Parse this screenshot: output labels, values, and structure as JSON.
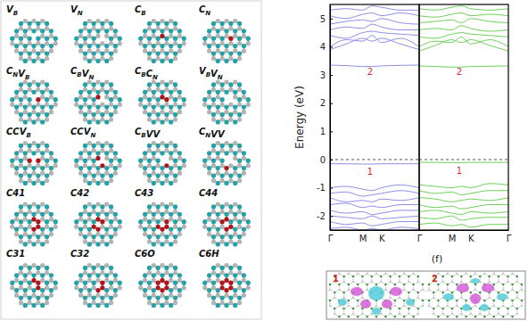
{
  "structures": [
    [
      [
        "V",
        "B"
      ]
    ],
    [
      [
        "V",
        "N"
      ]
    ],
    [
      [
        "C",
        "B"
      ]
    ],
    [
      [
        "C",
        "N"
      ]
    ],
    [
      [
        "C",
        "N"
      ],
      [
        "V",
        "B"
      ]
    ],
    [
      [
        "C",
        "B"
      ],
      [
        "V",
        "N"
      ]
    ],
    [
      [
        "C",
        "B"
      ],
      [
        "C",
        "N"
      ]
    ],
    [
      [
        "V",
        "B"
      ],
      [
        "V",
        "N"
      ]
    ],
    [
      [
        "CCV",
        "B"
      ]
    ],
    [
      [
        "CCV",
        "N"
      ]
    ],
    [
      [
        "C",
        "B"
      ],
      [
        "VV"
      ]
    ],
    [
      [
        "C",
        "N"
      ],
      [
        "VV"
      ]
    ],
    [
      [
        "C41"
      ]
    ],
    [
      [
        "C42"
      ]
    ],
    [
      [
        "C43"
      ]
    ],
    [
      [
        "C44"
      ]
    ],
    [
      [
        "C31"
      ]
    ],
    [
      [
        "C32"
      ]
    ],
    [
      [
        "C6O"
      ]
    ],
    [
      [
        "C6H"
      ]
    ]
  ],
  "chart_data": [
    {
      "type": "line",
      "ylabel": "Energy (eV)",
      "color": "#8f8fe6",
      "x": [
        0,
        0.183,
        0.366,
        0.472,
        0.577,
        0.789,
        1
      ],
      "xlim": [
        0,
        1
      ],
      "xticks": [
        {
          "value": 0,
          "label": "Γ"
        },
        {
          "value": 0.366,
          "label": "M"
        },
        {
          "value": 0.577,
          "label": "K"
        },
        {
          "value": 1,
          "label": "Γ"
        }
      ],
      "ylim": [
        -2.5,
        5.5
      ],
      "yticks": [
        -2,
        -1,
        0,
        1,
        2,
        3,
        4,
        5
      ],
      "reference_line": {
        "y": 0,
        "line_style": "dashed"
      },
      "annotations": [
        {
          "text": "1",
          "x": 0.45,
          "y": -0.55,
          "color": "#d62728"
        },
        {
          "text": "2",
          "x": 0.45,
          "y": 3.0,
          "color": "#d62728"
        }
      ],
      "series": [
        {
          "values": [
            -1.0,
            -0.95,
            -1.05,
            -1.1,
            -1.0,
            -0.9,
            -1.0
          ]
        },
        {
          "values": [
            -1.2,
            -1.15,
            -1.3,
            -1.25,
            -1.2,
            -1.1,
            -1.2
          ]
        },
        {
          "values": [
            -1.35,
            -1.5,
            -1.45,
            -1.5,
            -1.4,
            -1.45,
            -1.35
          ]
        },
        {
          "values": [
            -1.6,
            -1.55,
            -1.7,
            -1.65,
            -1.7,
            -1.6,
            -1.6
          ]
        },
        {
          "values": [
            -1.8,
            -1.9,
            -1.85,
            -1.95,
            -1.9,
            -1.8,
            -1.8
          ]
        },
        {
          "values": [
            -2.0,
            -2.05,
            -2.1,
            -2.0,
            -2.1,
            -2.05,
            -2.0
          ]
        },
        {
          "values": [
            -2.2,
            -2.3,
            -2.25,
            -2.35,
            -2.3,
            -2.2,
            -2.2
          ]
        },
        {
          "values": [
            -2.45,
            -2.4,
            -2.5,
            -2.45,
            -2.5,
            -2.4,
            -2.45
          ]
        },
        {
          "values": [
            -0.15,
            -0.15,
            -0.16,
            -0.16,
            -0.15,
            -0.15,
            -0.15
          ]
        },
        {
          "values": [
            3.35,
            3.33,
            3.3,
            3.3,
            3.32,
            3.34,
            3.35
          ]
        },
        {
          "values": [
            3.9,
            4.1,
            4.3,
            4.2,
            4.3,
            4.1,
            3.9
          ]
        },
        {
          "values": [
            4.0,
            4.25,
            4.2,
            4.4,
            4.15,
            4.3,
            4.0
          ]
        },
        {
          "values": [
            4.4,
            4.3,
            4.5,
            4.55,
            4.5,
            4.45,
            4.4
          ]
        },
        {
          "values": [
            4.6,
            4.7,
            4.65,
            4.8,
            4.7,
            4.6,
            4.6
          ]
        },
        {
          "values": [
            4.8,
            4.9,
            4.95,
            4.9,
            5.0,
            4.85,
            4.8
          ]
        },
        {
          "values": [
            5.1,
            5.0,
            5.15,
            5.2,
            5.1,
            5.2,
            5.1
          ]
        },
        {
          "values": [
            5.3,
            5.35,
            5.3,
            5.45,
            5.4,
            5.3,
            5.3
          ]
        }
      ]
    },
    {
      "type": "line",
      "color": "#6fd15a",
      "tick_labels": "x",
      "x": [
        0,
        0.183,
        0.366,
        0.472,
        0.577,
        0.789,
        1
      ],
      "xlim": [
        0,
        1
      ],
      "xticks": [
        {
          "value": 0.366,
          "label": "M"
        },
        {
          "value": 0.577,
          "label": "K"
        },
        {
          "value": 1,
          "label": "Γ"
        }
      ],
      "ylim": [
        -2.5,
        5.5
      ],
      "reference_line": {
        "y": 0,
        "line_style": "dashed"
      },
      "annotations": [
        {
          "text": "1",
          "x": 0.45,
          "y": -0.5,
          "color": "#d62728"
        },
        {
          "text": "2",
          "x": 0.45,
          "y": 3.0,
          "color": "#d62728"
        }
      ],
      "series": [
        {
          "values": [
            -0.9,
            -0.95,
            -1.0,
            -0.95,
            -1.0,
            -0.85,
            -0.9
          ]
        },
        {
          "values": [
            -1.1,
            -1.2,
            -1.15,
            -1.25,
            -1.2,
            -1.1,
            -1.1
          ]
        },
        {
          "values": [
            -1.35,
            -1.4,
            -1.5,
            -1.45,
            -1.4,
            -1.45,
            -1.35
          ]
        },
        {
          "values": [
            -1.6,
            -1.7,
            -1.65,
            -1.75,
            -1.7,
            -1.6,
            -1.6
          ]
        },
        {
          "values": [
            -1.85,
            -1.8,
            -1.9,
            -1.95,
            -1.85,
            -1.9,
            -1.85
          ]
        },
        {
          "values": [
            -2.05,
            -2.1,
            -2.0,
            -2.15,
            -2.1,
            -2.05,
            -2.05
          ]
        },
        {
          "values": [
            -2.3,
            -2.25,
            -2.35,
            -2.3,
            -2.4,
            -2.3,
            -2.3
          ]
        },
        {
          "values": [
            -0.1,
            -0.1,
            -0.11,
            -0.11,
            -0.1,
            -0.1,
            -0.1
          ]
        },
        {
          "values": [
            3.32,
            3.3,
            3.28,
            3.28,
            3.3,
            3.31,
            3.32
          ]
        },
        {
          "values": [
            3.85,
            4.05,
            4.25,
            4.15,
            4.25,
            4.05,
            3.85
          ]
        },
        {
          "values": [
            4.0,
            4.2,
            4.15,
            4.35,
            4.1,
            4.25,
            4.0
          ]
        },
        {
          "values": [
            4.35,
            4.3,
            4.45,
            4.5,
            4.45,
            4.4,
            4.35
          ]
        },
        {
          "values": [
            4.6,
            4.65,
            4.6,
            4.75,
            4.65,
            4.55,
            4.6
          ]
        },
        {
          "values": [
            4.85,
            4.9,
            4.95,
            4.85,
            5.0,
            4.9,
            4.85
          ]
        },
        {
          "values": [
            5.1,
            5.05,
            5.15,
            5.2,
            5.1,
            5.15,
            5.1
          ]
        },
        {
          "values": [
            5.35,
            5.3,
            5.4,
            5.45,
            5.35,
            5.3,
            5.35
          ]
        }
      ]
    }
  ],
  "panel_f": {
    "label": "(f)",
    "states": [
      "1",
      "2"
    ]
  }
}
